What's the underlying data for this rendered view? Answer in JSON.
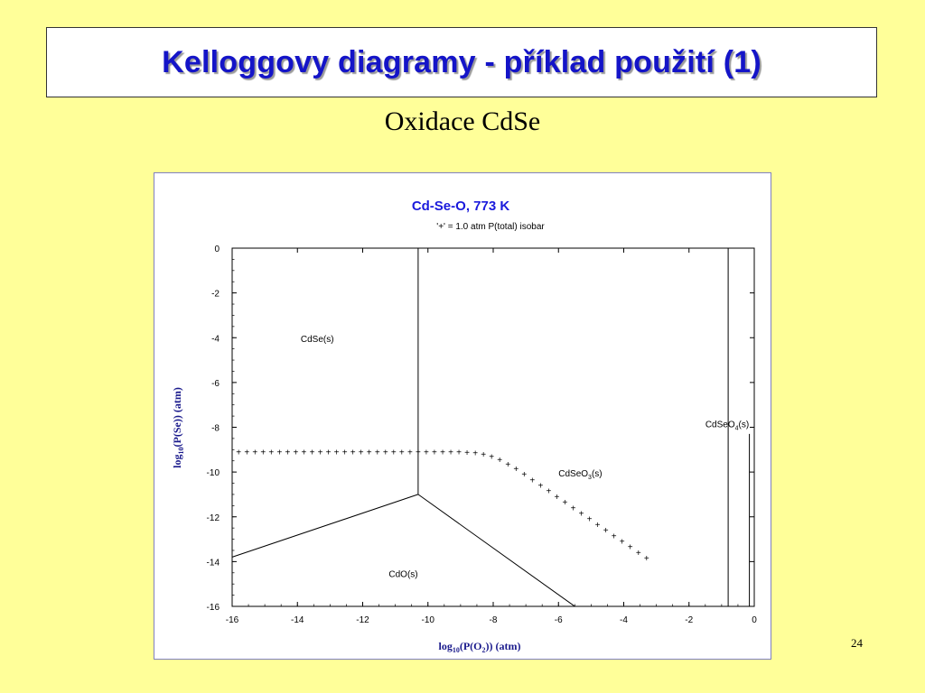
{
  "slide": {
    "title": "Kelloggovy diagramy - příklad použití (1)",
    "subtitle": "Oxidace CdSe",
    "page_number": "24"
  },
  "colors": {
    "background": "#ffff99",
    "title_text": "#1414c8",
    "chart_title": "#1a1adc",
    "axis_label": "#1a1a8c"
  },
  "chart_data": {
    "type": "scatter",
    "title": "Cd-Se-O, 773 K",
    "subtitle": "'+' = 1.0 atm P(total) isobar",
    "xlabel": "log10(P(O2)) (atm)",
    "ylabel": "log10(P(Se)) (atm)",
    "xlim": [
      -16,
      0
    ],
    "ylim": [
      -16,
      0
    ],
    "xticks": [
      -16,
      -14,
      -12,
      -10,
      -8,
      -6,
      -4,
      -2,
      0
    ],
    "yticks": [
      0,
      -2,
      -4,
      -6,
      -8,
      -10,
      -12,
      -14,
      -16
    ],
    "phase_boundaries": [
      {
        "points": [
          [
            -10.3,
            0
          ],
          [
            -10.3,
            -11.0
          ]
        ]
      },
      {
        "points": [
          [
            -16,
            -13.8
          ],
          [
            -10.3,
            -11.0
          ]
        ]
      },
      {
        "points": [
          [
            -10.3,
            -11.0
          ],
          [
            -5.5,
            -16
          ]
        ]
      },
      {
        "points": [
          [
            -0.8,
            0
          ],
          [
            -0.8,
            -16
          ]
        ]
      },
      {
        "points": [
          [
            -0.15,
            -16
          ],
          [
            -0.15,
            -8.3
          ]
        ]
      }
    ],
    "regions": [
      {
        "label": "CdSe(s)",
        "x": -13.9,
        "y": -4.2
      },
      {
        "label": "CdO(s)",
        "x": -11.2,
        "y": -14.7
      },
      {
        "label": "CdSeO3(s)",
        "x": -6.0,
        "y": -10.2
      },
      {
        "label": "CdSeO4(s)",
        "x": -1.5,
        "y": -8.0
      }
    ],
    "isobar": {
      "name": "1.0 atm P(total) isobar",
      "x": [
        -15.8,
        -15.55,
        -15.3,
        -15.05,
        -14.8,
        -14.55,
        -14.3,
        -14.05,
        -13.8,
        -13.55,
        -13.3,
        -13.05,
        -12.8,
        -12.55,
        -12.3,
        -12.05,
        -11.8,
        -11.55,
        -11.3,
        -11.05,
        -10.8,
        -10.55,
        -10.3,
        -10.05,
        -9.8,
        -9.55,
        -9.3,
        -9.05,
        -8.8,
        -8.55,
        -8.3,
        -8.05,
        -7.8,
        -7.55,
        -7.3,
        -7.05,
        -6.8,
        -6.55,
        -6.3,
        -6.05,
        -5.8,
        -5.55,
        -5.3,
        -5.05,
        -4.8,
        -4.55,
        -4.3,
        -4.05,
        -3.8,
        -3.55,
        -3.3
      ],
      "y": [
        -9.1,
        -9.1,
        -9.1,
        -9.1,
        -9.1,
        -9.1,
        -9.1,
        -9.1,
        -9.1,
        -9.1,
        -9.1,
        -9.1,
        -9.1,
        -9.1,
        -9.1,
        -9.1,
        -9.1,
        -9.1,
        -9.1,
        -9.1,
        -9.1,
        -9.1,
        -9.1,
        -9.1,
        -9.1,
        -9.1,
        -9.1,
        -9.1,
        -9.12,
        -9.15,
        -9.2,
        -9.3,
        -9.45,
        -9.65,
        -9.85,
        -10.1,
        -10.35,
        -10.6,
        -10.85,
        -11.1,
        -11.35,
        -11.6,
        -11.85,
        -12.1,
        -12.35,
        -12.6,
        -12.85,
        -13.1,
        -13.35,
        -13.6,
        -13.85
      ]
    }
  }
}
